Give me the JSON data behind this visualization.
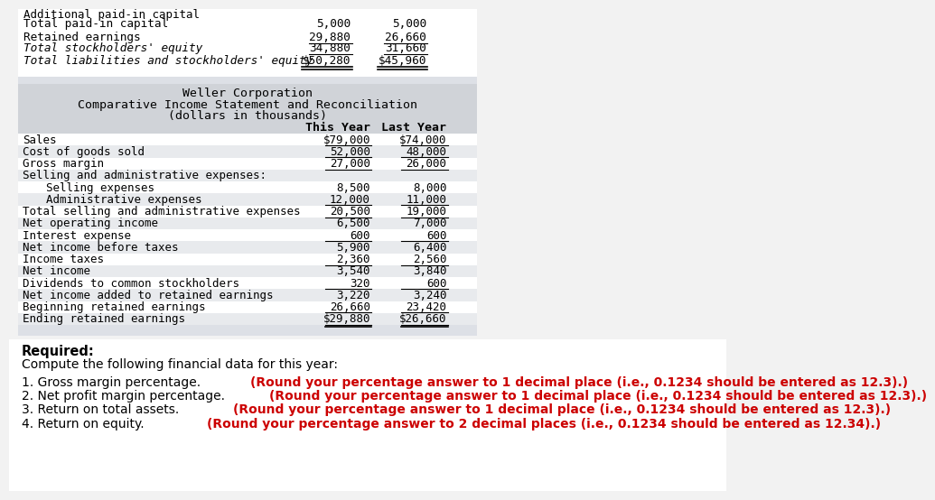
{
  "page_bg": "#f2f2f2",
  "top_table": {
    "rows": [
      {
        "label": "Total paid-in capital",
        "this_year": "5,000",
        "last_year": "5,000",
        "ul_single": false,
        "ul_double": false
      },
      {
        "label": "Retained earnings",
        "this_year": "29,880",
        "last_year": "26,660",
        "ul_single": true,
        "ul_double": false
      },
      {
        "label": "Total stockholders' equity",
        "this_year": "34,880",
        "last_year": "31,660",
        "ul_single": true,
        "ul_double": false
      },
      {
        "label": "Total liabilities and stockholders' equity",
        "this_year": "$50,280",
        "last_year": "$45,960",
        "ul_single": false,
        "ul_double": true
      }
    ]
  },
  "income_table": {
    "title1": "Weller Corporation",
    "title2": "Comparative Income Statement and Reconciliation",
    "title3": "(dollars in thousands)",
    "col1": "This Year",
    "col2": "Last Year",
    "rows": [
      {
        "label": "Sales",
        "this_year": "$79,000",
        "last_year": "$74,000",
        "ul": true,
        "indent": false
      },
      {
        "label": "Cost of goods sold",
        "this_year": "52,000",
        "last_year": "48,000",
        "ul": true,
        "indent": false
      },
      {
        "label": "Gross margin",
        "this_year": "27,000",
        "last_year": "26,000",
        "ul": true,
        "indent": false
      },
      {
        "label": "Selling and administrative expenses:",
        "this_year": "",
        "last_year": "",
        "ul": false,
        "indent": false
      },
      {
        "label": "  Selling expenses",
        "this_year": "8,500",
        "last_year": "8,000",
        "ul": false,
        "indent": true
      },
      {
        "label": "  Administrative expenses",
        "this_year": "12,000",
        "last_year": "11,000",
        "ul": true,
        "indent": true
      },
      {
        "label": "Total selling and administrative expenses",
        "this_year": "20,500",
        "last_year": "19,000",
        "ul": true,
        "indent": false
      },
      {
        "label": "Net operating income",
        "this_year": "6,500",
        "last_year": "7,000",
        "ul": false,
        "indent": false
      },
      {
        "label": "Interest expense",
        "this_year": "600",
        "last_year": "600",
        "ul": true,
        "indent": false
      },
      {
        "label": "Net income before taxes",
        "this_year": "5,900",
        "last_year": "6,400",
        "ul": false,
        "indent": false
      },
      {
        "label": "Income taxes",
        "this_year": "2,360",
        "last_year": "2,560",
        "ul": true,
        "indent": false
      },
      {
        "label": "Net income",
        "this_year": "3,540",
        "last_year": "3,840",
        "ul": false,
        "indent": false
      },
      {
        "label": "Dividends to common stockholders",
        "this_year": "320",
        "last_year": "600",
        "ul": true,
        "indent": false
      },
      {
        "label": "Net income added to retained earnings",
        "this_year": "3,220",
        "last_year": "3,240",
        "ul": false,
        "indent": false
      },
      {
        "label": "Beginning retained earnings",
        "this_year": "26,660",
        "last_year": "23,420",
        "ul": true,
        "indent": false
      },
      {
        "label": "Ending retained earnings",
        "this_year": "$29,880",
        "last_year": "$26,660",
        "ul": true,
        "ul_double": true,
        "indent": false
      }
    ]
  },
  "required_text": "Required:",
  "compute_text": "Compute the following financial data for this year:",
  "questions": [
    {
      "plain": "1. Gross margin percentage. ",
      "bold": "(Round your percentage answer to 1 decimal place (i.e., 0.1234 should be entered as 12.3).)"
    },
    {
      "plain": "2. Net profit margin percentage. ",
      "bold": "(Round your percentage answer to 1 decimal place (i.e., 0.1234 should be entered as 12.3).)"
    },
    {
      "plain": "3. Return on total assets. ",
      "bold": "(Round your percentage answer to 1 decimal place (i.e., 0.1234 should be entered as 12.3).)"
    },
    {
      "plain": "4. Return on equity. ",
      "bold": "(Round your percentage answer to 2 decimal places (i.e., 0.1234 should be entered as 12.34).)"
    }
  ],
  "gray_header": "#d0d3d8",
  "gray_body": "#dde0e6",
  "white": "#ffffff",
  "red": "#cc0000"
}
